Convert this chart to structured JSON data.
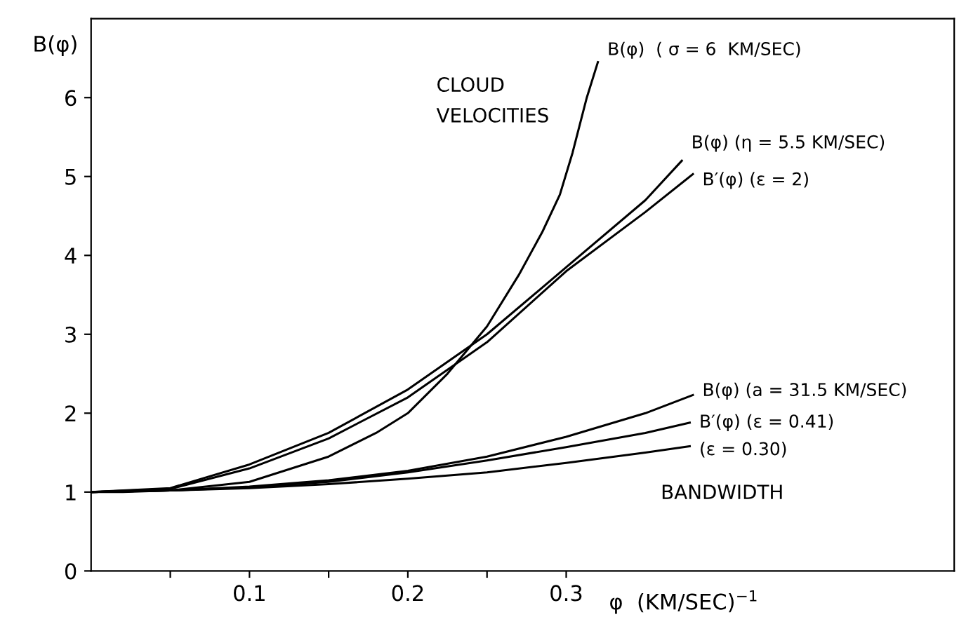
{
  "chart_data": {
    "type": "line",
    "xlabel": "φ  (KM/SEC)$^{−1}$",
    "ylabel": "B(φ)",
    "xlim": [
      0,
      0.545
    ],
    "ylim": [
      0,
      7.0
    ],
    "xticks": [
      {
        "value": 0.05,
        "label": null
      },
      0.1,
      {
        "value": 0.15,
        "label": null
      },
      0.2,
      {
        "value": 0.25,
        "label": null
      },
      0.3
    ],
    "yticks": [
      0,
      1,
      2,
      3,
      4,
      5,
      6
    ],
    "grid": false,
    "legend": false,
    "marker": "none",
    "line_style": "solid",
    "series": [
      {
        "name": "B(φ)  ( σ = 6  KM/SEC)",
        "color": "#000000",
        "x": [
          0,
          0.02,
          0.05,
          0.1,
          0.15,
          0.18,
          0.2,
          0.225,
          0.25,
          0.27,
          0.285,
          0.296,
          0.304,
          0.313,
          0.32
        ],
        "values": [
          1.0,
          1.0,
          1.02,
          1.13,
          1.45,
          1.75,
          2.0,
          2.5,
          3.1,
          3.75,
          4.3,
          4.77,
          5.3,
          6.0,
          6.45
        ]
      },
      {
        "name": "B(φ) (η = 5.5 KM/SEC)",
        "color": "#000000",
        "x": [
          0,
          0.05,
          0.1,
          0.15,
          0.2,
          0.25,
          0.3,
          0.35,
          0.373
        ],
        "values": [
          1.0,
          1.05,
          1.35,
          1.75,
          2.3,
          3.0,
          3.85,
          4.7,
          5.2
        ]
      },
      {
        "name": "B′(φ) (ε = 2)",
        "color": "#000000",
        "x": [
          0,
          0.05,
          0.1,
          0.15,
          0.2,
          0.25,
          0.3,
          0.35,
          0.38
        ],
        "values": [
          1.0,
          1.04,
          1.3,
          1.68,
          2.2,
          2.9,
          3.8,
          4.55,
          5.03
        ]
      },
      {
        "name": "B(φ) (a = 31.5 KM/SEC)",
        "color": "#000000",
        "x": [
          0,
          0.05,
          0.1,
          0.15,
          0.2,
          0.25,
          0.3,
          0.35,
          0.38
        ],
        "values": [
          1.0,
          1.02,
          1.07,
          1.15,
          1.27,
          1.45,
          1.7,
          2.0,
          2.23
        ]
      },
      {
        "name": "B′(φ) (ε = 0.41)",
        "color": "#000000",
        "x": [
          0,
          0.05,
          0.1,
          0.15,
          0.2,
          0.25,
          0.3,
          0.35,
          0.378
        ],
        "values": [
          1.0,
          1.02,
          1.06,
          1.13,
          1.25,
          1.4,
          1.57,
          1.75,
          1.88
        ]
      },
      {
        "name": "(ε = 0.30)",
        "color": "#000000",
        "x": [
          0,
          0.05,
          0.1,
          0.15,
          0.2,
          0.25,
          0.3,
          0.35,
          0.378
        ],
        "values": [
          1.0,
          1.02,
          1.05,
          1.1,
          1.17,
          1.25,
          1.37,
          1.5,
          1.58
        ]
      }
    ],
    "annotations": [
      "CLOUD\nVELOCITIES",
      "BANDWIDTH"
    ]
  }
}
